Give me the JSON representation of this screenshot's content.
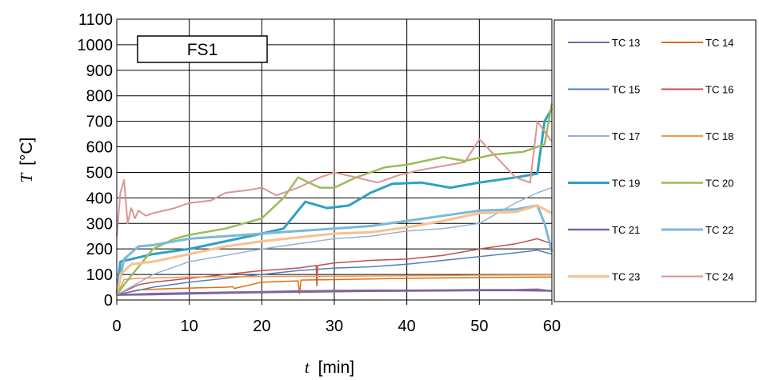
{
  "chart_data": {
    "type": "line",
    "title": "FS1",
    "xlabel": {
      "symbol": "t",
      "unit": "[min]"
    },
    "ylabel": {
      "symbol": "T",
      "unit": "[°C]"
    },
    "xlim": [
      0,
      60
    ],
    "ylim": [
      0,
      1100
    ],
    "x_ticks": [
      0,
      10,
      20,
      30,
      40,
      50,
      60
    ],
    "y_ticks": [
      0,
      100,
      200,
      300,
      400,
      500,
      600,
      700,
      800,
      900,
      1000,
      1100
    ],
    "grid": true,
    "legend_position": "right",
    "series": [
      {
        "name": "TC 13",
        "color": "#8064a2",
        "width": 2,
        "points": [
          [
            0,
            20
          ],
          [
            5,
            25
          ],
          [
            10,
            28
          ],
          [
            15,
            30
          ],
          [
            20,
            32
          ],
          [
            25,
            35
          ],
          [
            30,
            37
          ],
          [
            35,
            38
          ],
          [
            40,
            38
          ],
          [
            45,
            39
          ],
          [
            50,
            40
          ],
          [
            55,
            40
          ],
          [
            58,
            42
          ],
          [
            60,
            35
          ]
        ]
      },
      {
        "name": "TC 14",
        "color": "#e36c0a",
        "width": 1.5,
        "points": [
          [
            0,
            20
          ],
          [
            3,
            40
          ],
          [
            8,
            45
          ],
          [
            15,
            50
          ],
          [
            16,
            52
          ],
          [
            16.2,
            45
          ],
          [
            20,
            70
          ],
          [
            25,
            75
          ],
          [
            25.2,
            25
          ],
          [
            25.4,
            78
          ],
          [
            30,
            80
          ],
          [
            40,
            85
          ],
          [
            50,
            88
          ],
          [
            60,
            90
          ]
        ]
      },
      {
        "name": "TC 15",
        "color": "#4f81bd",
        "width": 1.5,
        "points": [
          [
            0,
            20
          ],
          [
            5,
            50
          ],
          [
            10,
            70
          ],
          [
            15,
            85
          ],
          [
            20,
            100
          ],
          [
            25,
            115
          ],
          [
            30,
            125
          ],
          [
            35,
            130
          ],
          [
            40,
            140
          ],
          [
            45,
            155
          ],
          [
            50,
            170
          ],
          [
            55,
            185
          ],
          [
            58,
            195
          ],
          [
            60,
            180
          ]
        ]
      },
      {
        "name": "TC 16",
        "color": "#c0504d",
        "width": 1.5,
        "points": [
          [
            0,
            20
          ],
          [
            3,
            60
          ],
          [
            5,
            70
          ],
          [
            10,
            85
          ],
          [
            15,
            100
          ],
          [
            20,
            115
          ],
          [
            25,
            125
          ],
          [
            27.5,
            135
          ],
          [
            27.6,
            55
          ],
          [
            27.7,
            135
          ],
          [
            30,
            145
          ],
          [
            35,
            155
          ],
          [
            40,
            160
          ],
          [
            45,
            175
          ],
          [
            50,
            200
          ],
          [
            55,
            220
          ],
          [
            58,
            240
          ],
          [
            60,
            220
          ]
        ]
      },
      {
        "name": "TC 17",
        "color": "#95b3d7",
        "width": 1.5,
        "points": [
          [
            0,
            20
          ],
          [
            5,
            100
          ],
          [
            10,
            150
          ],
          [
            15,
            175
          ],
          [
            20,
            200
          ],
          [
            25,
            220
          ],
          [
            30,
            240
          ],
          [
            35,
            250
          ],
          [
            40,
            270
          ],
          [
            45,
            280
          ],
          [
            50,
            300
          ],
          [
            55,
            380
          ],
          [
            58,
            420
          ],
          [
            60,
            440
          ]
        ]
      },
      {
        "name": "TC 18",
        "color": "#f79646",
        "width": 1.5,
        "points": [
          [
            0,
            20
          ],
          [
            1,
            80
          ],
          [
            3,
            85
          ],
          [
            10,
            90
          ],
          [
            20,
            92
          ],
          [
            30,
            93
          ],
          [
            40,
            95
          ],
          [
            50,
            97
          ],
          [
            60,
            98
          ]
        ]
      },
      {
        "name": "TC 19",
        "color": "#31a0c4",
        "width": 3,
        "points": [
          [
            0,
            20
          ],
          [
            0.5,
            150
          ],
          [
            2,
            160
          ],
          [
            5,
            180
          ],
          [
            10,
            200
          ],
          [
            15,
            230
          ],
          [
            20,
            260
          ],
          [
            23,
            280
          ],
          [
            26,
            385
          ],
          [
            29,
            360
          ],
          [
            32,
            370
          ],
          [
            35,
            420
          ],
          [
            38,
            455
          ],
          [
            42,
            460
          ],
          [
            46,
            440
          ],
          [
            50,
            460
          ],
          [
            55,
            480
          ],
          [
            58,
            495
          ],
          [
            59,
            700
          ],
          [
            60,
            750
          ]
        ]
      },
      {
        "name": "TC 20",
        "color": "#9bbb59",
        "width": 2.5,
        "points": [
          [
            0,
            20
          ],
          [
            1,
            60
          ],
          [
            3,
            130
          ],
          [
            5,
            200
          ],
          [
            8,
            240
          ],
          [
            10,
            255
          ],
          [
            15,
            280
          ],
          [
            20,
            320
          ],
          [
            23,
            400
          ],
          [
            25,
            480
          ],
          [
            28,
            440
          ],
          [
            30,
            440
          ],
          [
            33,
            480
          ],
          [
            37,
            520
          ],
          [
            40,
            530
          ],
          [
            45,
            560
          ],
          [
            48,
            545
          ],
          [
            52,
            570
          ],
          [
            56,
            580
          ],
          [
            59,
            610
          ],
          [
            60,
            770
          ]
        ]
      },
      {
        "name": "TC 21",
        "color": "#8064a2",
        "width": 2.5,
        "points": [
          [
            0,
            20
          ],
          [
            5,
            22
          ],
          [
            10,
            25
          ],
          [
            15,
            28
          ],
          [
            20,
            30
          ],
          [
            25,
            32
          ],
          [
            30,
            34
          ],
          [
            35,
            35
          ],
          [
            40,
            36
          ],
          [
            45,
            37
          ],
          [
            50,
            38
          ],
          [
            55,
            38
          ],
          [
            60,
            36
          ]
        ]
      },
      {
        "name": "TC 22",
        "color": "#7cb8d6",
        "width": 3,
        "points": [
          [
            0,
            20
          ],
          [
            1,
            160
          ],
          [
            3,
            210
          ],
          [
            5,
            215
          ],
          [
            10,
            240
          ],
          [
            15,
            250
          ],
          [
            20,
            260
          ],
          [
            25,
            270
          ],
          [
            30,
            280
          ],
          [
            35,
            290
          ],
          [
            40,
            310
          ],
          [
            45,
            330
          ],
          [
            50,
            350
          ],
          [
            55,
            355
          ],
          [
            58,
            370
          ],
          [
            59,
            300
          ],
          [
            60,
            190
          ]
        ]
      },
      {
        "name": "TC 23",
        "color": "#fac090",
        "width": 3,
        "points": [
          [
            0,
            20
          ],
          [
            0.5,
            100
          ],
          [
            2,
            140
          ],
          [
            5,
            150
          ],
          [
            10,
            180
          ],
          [
            15,
            210
          ],
          [
            20,
            230
          ],
          [
            25,
            245
          ],
          [
            30,
            260
          ],
          [
            35,
            265
          ],
          [
            40,
            285
          ],
          [
            45,
            310
          ],
          [
            50,
            340
          ],
          [
            55,
            345
          ],
          [
            58,
            370
          ],
          [
            60,
            340
          ]
        ]
      },
      {
        "name": "TC 24",
        "color": "#d99594",
        "width": 2,
        "points": [
          [
            0,
            250
          ],
          [
            0.5,
            420
          ],
          [
            1,
            470
          ],
          [
            1.5,
            300
          ],
          [
            2,
            360
          ],
          [
            2.5,
            320
          ],
          [
            3,
            350
          ],
          [
            4,
            330
          ],
          [
            5,
            340
          ],
          [
            8,
            360
          ],
          [
            10,
            380
          ],
          [
            13,
            390
          ],
          [
            15,
            420
          ],
          [
            18,
            430
          ],
          [
            20,
            440
          ],
          [
            22,
            410
          ],
          [
            25,
            440
          ],
          [
            28,
            480
          ],
          [
            30,
            500
          ],
          [
            33,
            480
          ],
          [
            36,
            460
          ],
          [
            39,
            490
          ],
          [
            42,
            510
          ],
          [
            46,
            530
          ],
          [
            48,
            540
          ],
          [
            50,
            630
          ],
          [
            51,
            600
          ],
          [
            53,
            540
          ],
          [
            55,
            480
          ],
          [
            57,
            460
          ],
          [
            58,
            700
          ],
          [
            59,
            660
          ],
          [
            60,
            620
          ]
        ]
      }
    ]
  }
}
